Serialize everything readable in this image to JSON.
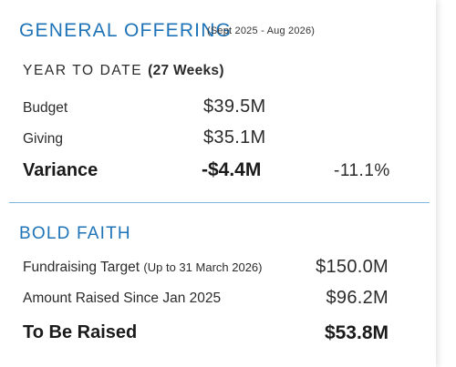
{
  "general_offering": {
    "title": "GENERAL OFFERING",
    "period": "(Sept 2025 - Aug 2026)",
    "ytd_label": "YEAR TO DATE",
    "ytd_weeks": "(27 Weeks)",
    "rows": [
      {
        "label": "Budget",
        "value": "$39.5M"
      },
      {
        "label": "Giving",
        "value": "$35.1M"
      }
    ],
    "variance": {
      "label": "Variance",
      "value": "-$4.4M",
      "percent": "-11.1%"
    }
  },
  "bold_faith": {
    "title": "BOLD FAITH",
    "target": {
      "label": "Fundraising Target",
      "note": "(Up to 31 March 2026)",
      "value": "$150.0M"
    },
    "raised": {
      "label": "Amount Raised Since Jan 2025",
      "value": "$96.2M"
    },
    "remaining": {
      "label": "To Be Raised",
      "value": "$53.8M"
    }
  },
  "colors": {
    "accent": "#1f73b7",
    "divider": "#7fb6e0"
  }
}
